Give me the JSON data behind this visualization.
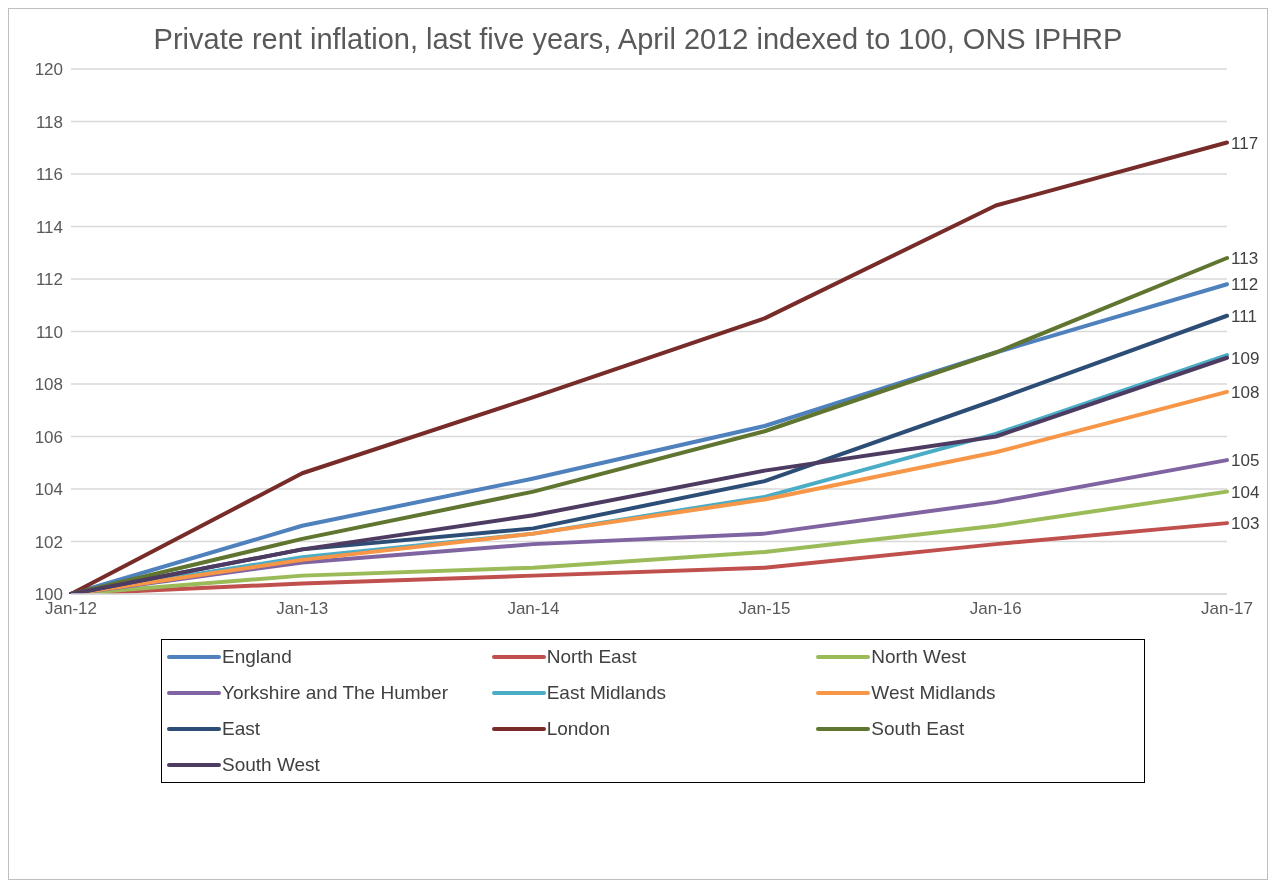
{
  "chart_data": {
    "type": "line",
    "title": "Private rent inflation, last five years, April 2012 indexed to 100, ONS IPHRP",
    "categories": [
      "Jan-12",
      "Jan-13",
      "Jan-14",
      "Jan-15",
      "Jan-16",
      "Jan-17"
    ],
    "ylim": [
      100,
      120
    ],
    "yticks": [
      100,
      102,
      104,
      106,
      108,
      110,
      112,
      114,
      116,
      118,
      120
    ],
    "grid": "y",
    "legend": "bottom",
    "marker": "none",
    "line_style": "solid",
    "series": [
      {
        "name": "England",
        "color": "#4f81bd",
        "values": [
          100,
          102.6,
          104.4,
          106.4,
          109.2,
          111.8
        ],
        "value_labels": [
          null,
          null,
          null,
          null,
          null,
          "112"
        ]
      },
      {
        "name": "North East",
        "color": "#c0504d",
        "values": [
          100,
          100.4,
          100.7,
          101.0,
          101.9,
          102.7
        ],
        "value_labels": [
          null,
          null,
          null,
          null,
          null,
          "103"
        ]
      },
      {
        "name": "North West",
        "color": "#9bbb59",
        "values": [
          100,
          100.7,
          101.0,
          101.6,
          102.6,
          103.9
        ],
        "value_labels": [
          null,
          null,
          null,
          null,
          null,
          "104"
        ]
      },
      {
        "name": "Yorkshire and The Humber",
        "color": "#8064a2",
        "values": [
          100,
          101.2,
          101.9,
          102.3,
          103.5,
          105.1
        ],
        "value_labels": [
          null,
          null,
          null,
          null,
          null,
          "105"
        ]
      },
      {
        "name": "East Midlands",
        "color": "#4bacc6",
        "values": [
          100,
          101.4,
          102.3,
          103.7,
          106.1,
          109.1
        ],
        "value_labels": [
          null,
          null,
          null,
          null,
          null,
          null
        ]
      },
      {
        "name": "West Midlands",
        "color": "#f79646",
        "values": [
          100,
          101.3,
          102.3,
          103.6,
          105.4,
          107.7
        ],
        "value_labels": [
          null,
          null,
          null,
          null,
          null,
          "108"
        ]
      },
      {
        "name": "East",
        "color": "#2c4d75",
        "values": [
          100,
          101.7,
          102.5,
          104.3,
          107.4,
          110.6
        ],
        "value_labels": [
          null,
          null,
          null,
          null,
          null,
          "111"
        ]
      },
      {
        "name": "London",
        "color": "#772c2a",
        "values": [
          100,
          104.6,
          107.5,
          110.5,
          114.8,
          117.2
        ],
        "value_labels": [
          null,
          null,
          null,
          null,
          null,
          "117"
        ]
      },
      {
        "name": "South East",
        "color": "#5f7530",
        "values": [
          100,
          102.1,
          103.9,
          106.2,
          109.2,
          112.8
        ],
        "value_labels": [
          null,
          null,
          null,
          null,
          null,
          "113"
        ]
      },
      {
        "name": "South West",
        "color": "#4d3b62",
        "values": [
          100,
          101.7,
          103.0,
          104.7,
          106.0,
          109.0
        ],
        "value_labels": [
          null,
          null,
          null,
          null,
          null,
          "109"
        ]
      }
    ]
  }
}
